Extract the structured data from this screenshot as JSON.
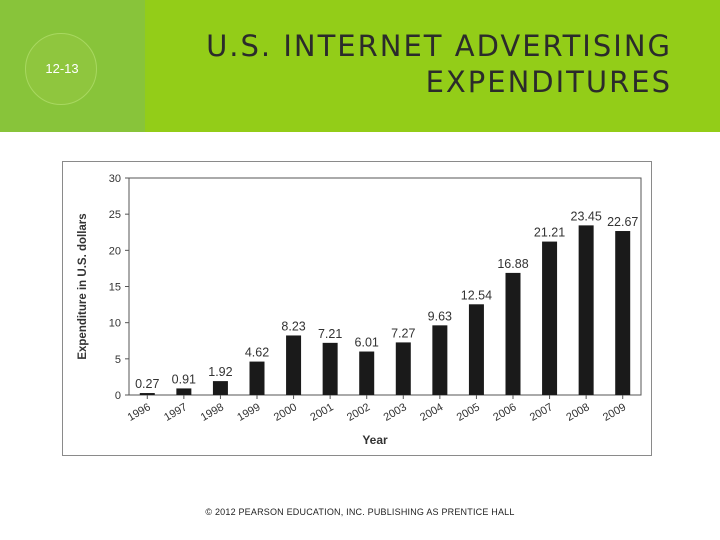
{
  "slide": {
    "number": "12-13"
  },
  "title": {
    "line1": "U.S. INTERNET ADVERTISING",
    "line2": "EXPENDITURES"
  },
  "footer": {
    "text": "© 2012 PEARSON EDUCATION, INC. PUBLISHING AS PRENTICE HALL"
  },
  "colors": {
    "band": "#93cd18",
    "bar": "#1a1a1a"
  },
  "chart_data": {
    "type": "bar",
    "categories": [
      "1996",
      "1997",
      "1998",
      "1999",
      "2000",
      "2001",
      "2002",
      "2003",
      "2004",
      "2005",
      "2006",
      "2007",
      "2008",
      "2009"
    ],
    "values": [
      0.27,
      0.91,
      1.92,
      4.62,
      8.23,
      7.21,
      6.01,
      7.27,
      9.63,
      12.54,
      16.88,
      21.21,
      23.45,
      22.67
    ],
    "value_labels": [
      "0.27",
      "0.91",
      "1.92",
      "4.62",
      "8.23",
      "7.21",
      "6.01",
      "7.27",
      "9.63",
      "12.54",
      "16.88",
      "21.21",
      "23.45",
      "22.67"
    ],
    "xlabel": "Year",
    "ylabel": "Expenditure in U.S. dollars",
    "ylim": [
      0,
      30
    ],
    "yticks": [
      "0",
      "5",
      "10",
      "15",
      "20",
      "25",
      "30"
    ],
    "grid": false,
    "legend": "none"
  }
}
